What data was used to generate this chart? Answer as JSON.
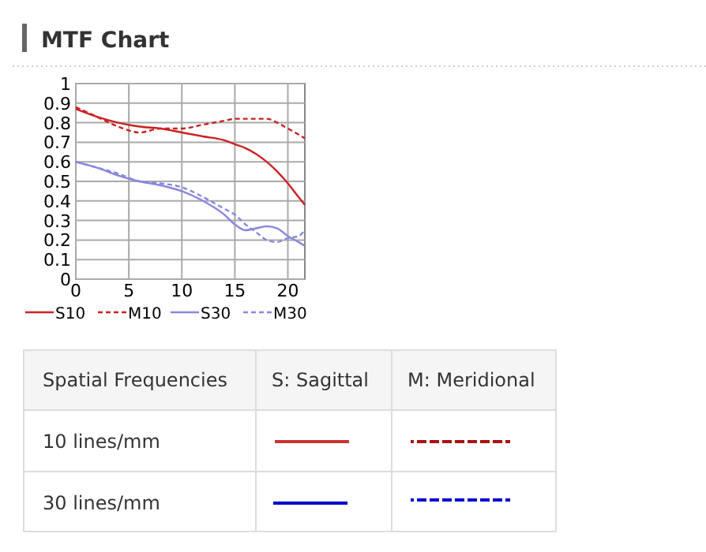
{
  "chart_data": {
    "type": "line",
    "title": "MTF Chart",
    "xlim": [
      0,
      21.6
    ],
    "xticks": [
      0,
      5,
      10,
      15,
      20
    ],
    "ylim": [
      0,
      1
    ],
    "yticks": [
      0,
      0.1,
      0.2,
      0.3,
      0.4,
      0.5,
      0.6,
      0.7,
      0.8,
      0.9,
      1
    ],
    "grid": true,
    "legend": "bottom",
    "x": [
      0,
      2,
      4,
      6,
      8,
      10,
      12,
      14,
      15,
      16,
      17,
      18,
      19,
      20,
      21,
      21.6
    ],
    "series": [
      {
        "name": "S10",
        "color": "#cc2222",
        "line_style": "solid",
        "values": [
          0.87,
          0.83,
          0.8,
          0.78,
          0.77,
          0.75,
          0.73,
          0.71,
          0.69,
          0.67,
          0.64,
          0.6,
          0.55,
          0.49,
          0.42,
          0.38
        ]
      },
      {
        "name": "M10",
        "color": "#cc2222",
        "line_style": "dashed",
        "values": [
          0.88,
          0.83,
          0.78,
          0.75,
          0.77,
          0.77,
          0.79,
          0.81,
          0.82,
          0.82,
          0.82,
          0.82,
          0.8,
          0.77,
          0.74,
          0.72
        ]
      },
      {
        "name": "S30",
        "color": "#8888dd",
        "line_style": "solid",
        "values": [
          0.6,
          0.57,
          0.53,
          0.5,
          0.48,
          0.45,
          0.4,
          0.33,
          0.28,
          0.25,
          0.26,
          0.27,
          0.26,
          0.22,
          0.19,
          0.17
        ]
      },
      {
        "name": "M30",
        "color": "#8888dd",
        "line_style": "dashed",
        "values": [
          0.6,
          0.57,
          0.54,
          0.5,
          0.49,
          0.47,
          0.42,
          0.36,
          0.33,
          0.28,
          0.24,
          0.2,
          0.19,
          0.21,
          0.22,
          0.25
        ]
      }
    ],
    "annotations": [
      "Spatial Frequencies",
      "S: Sagittal",
      "M: Meridional",
      "10 lines/mm",
      "30 lines/mm"
    ]
  }
}
